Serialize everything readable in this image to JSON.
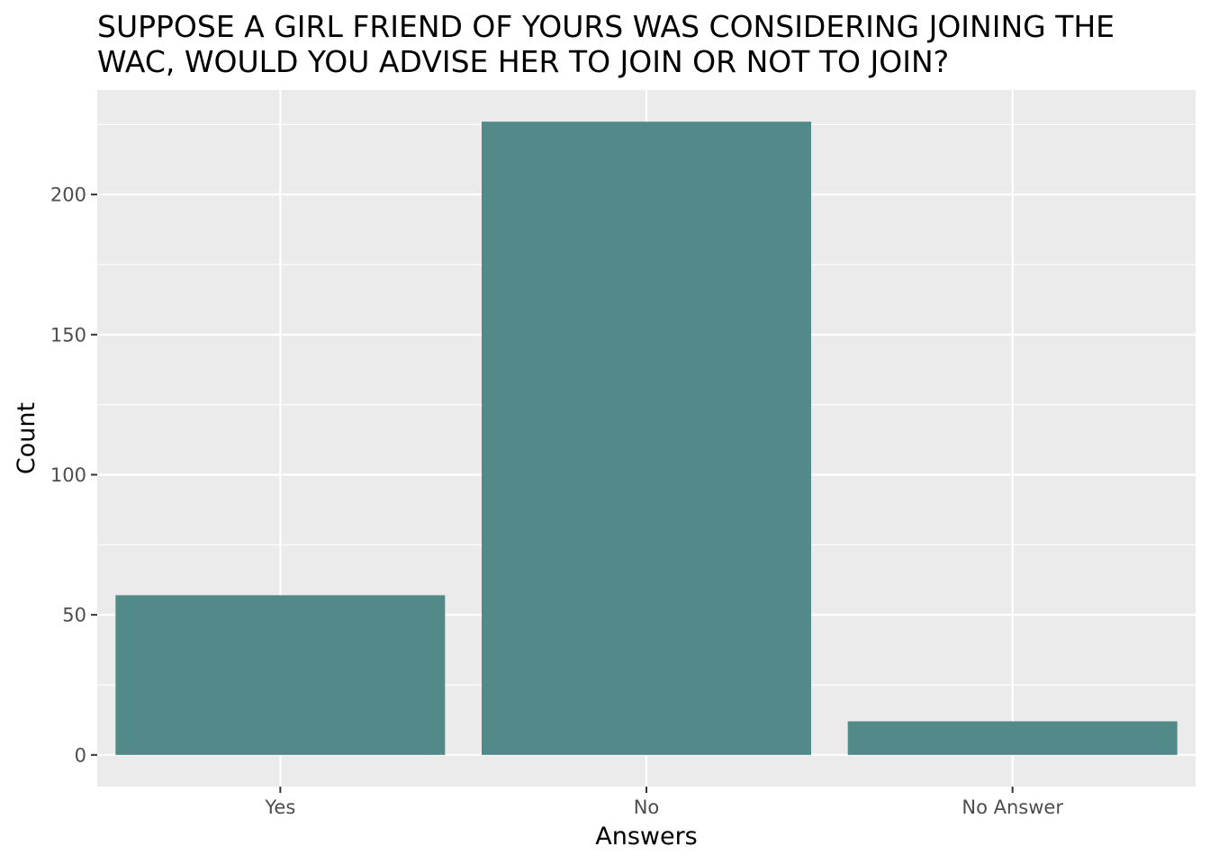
{
  "chart_data": {
    "type": "bar",
    "title": "SUPPOSE A GIRL FRIEND OF YOURS WAS CONSIDERING JOINING THE\nWAC, WOULD YOU ADVISE HER TO JOIN OR NOT TO JOIN?",
    "xlabel": "Answers",
    "ylabel": "Count",
    "categories": [
      "Yes",
      "No",
      "No Answer"
    ],
    "values": [
      57,
      226,
      12
    ],
    "ylim": [
      -11.3,
      237.3
    ],
    "yticks": [
      0,
      50,
      100,
      150,
      200
    ],
    "grid": true,
    "legend": "none",
    "colors": {
      "bar": "#528a8a",
      "panel": "#ebebeb",
      "gridline": "#ffffff",
      "tick_text": "#4d4d4d",
      "tick_mark": "#333333"
    }
  }
}
